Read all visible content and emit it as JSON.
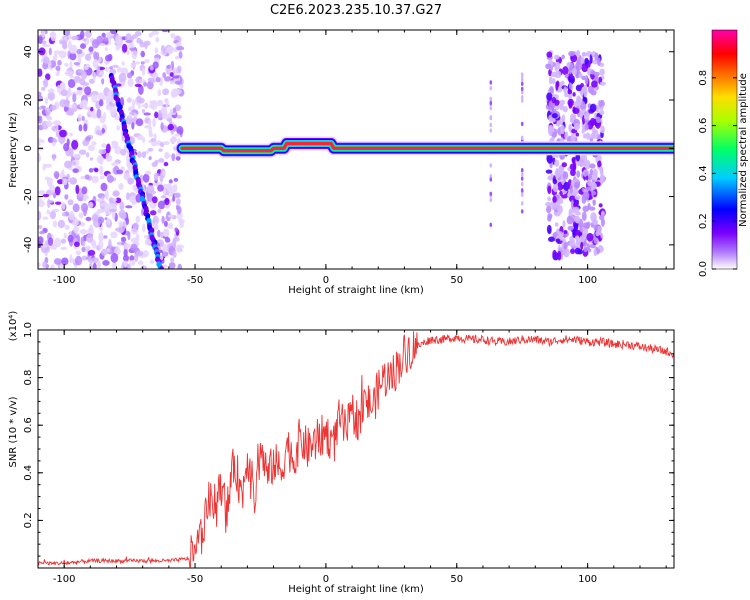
{
  "title": "C2E6.2023.235.10.37.G27",
  "charts": [
    {
      "type": "heatmap",
      "xlabel": "Height of straight line (km)",
      "ylabel": "Frequency (Hz)",
      "xlim": [
        -110,
        133
      ],
      "ylim": [
        -50,
        49
      ],
      "xticks": [
        -100,
        -50,
        0,
        50,
        100
      ],
      "yticks": [
        -40,
        -20,
        0,
        20,
        40
      ],
      "xtick_labels": [
        "-100",
        "-50",
        "0",
        "50",
        "100"
      ],
      "ytick_labels": [
        "-40",
        "-20",
        "0",
        "20",
        "40"
      ],
      "colorbar": {
        "label": "Normalized spectral amplitude",
        "range": [
          0,
          1
        ],
        "ticks": [
          0.0,
          0.2,
          0.4,
          0.6,
          0.8
        ],
        "tick_labels": [
          "0.0",
          "0.2",
          "0.4",
          "0.6",
          "0.8"
        ],
        "colors": [
          "#ffffff",
          "#7b00ff",
          "#0000ff",
          "#00ffff",
          "#00ff00",
          "#ffff00",
          "#ff0000",
          "#ff00ff"
        ]
      },
      "features": {
        "noise_region_km": [
          -110,
          -55
        ],
        "diagonal_track": {
          "from": [
            -82,
            30
          ],
          "to": [
            -63,
            -50
          ]
        },
        "main_trace_km": [
          -55,
          133
        ],
        "main_trace_freq_hz": 0,
        "trace_bump_km": [
          -15,
          2
        ],
        "trace_bump_freq_hz": 2,
        "thin_streaks_km": [
          63,
          75
        ],
        "noise_bands_km": [
          [
            85,
            92
          ],
          [
            93,
            99
          ],
          [
            99,
            106
          ]
        ]
      }
    },
    {
      "type": "line",
      "xlabel": "Height of straight line (km)",
      "ylabel": "SNR (10 * v/v)",
      "yscale_note": "(x10⁴)",
      "xlim": [
        -110,
        133
      ],
      "ylim": [
        0,
        1.0
      ],
      "xticks": [
        -100,
        -50,
        0,
        50,
        100
      ],
      "yticks": [
        0.2,
        0.4,
        0.6,
        0.8,
        1.0
      ],
      "xtick_labels": [
        "-100",
        "-50",
        "0",
        "50",
        "100"
      ],
      "ytick_labels": [
        "0.2",
        "0.4",
        "0.6",
        "0.8",
        "1.0"
      ],
      "series_color": "#ee3333",
      "x": [
        -110,
        -100,
        -90,
        -80,
        -70,
        -60,
        -52,
        -50,
        -48,
        -45,
        -42,
        -40,
        -38,
        -35,
        -32,
        -30,
        -27,
        -25,
        -22,
        -20,
        -17,
        -15,
        -12,
        -10,
        -7,
        -5,
        -2,
        0,
        3,
        5,
        8,
        10,
        13,
        15,
        18,
        20,
        22,
        25,
        28,
        30,
        32,
        35,
        38,
        40,
        45,
        50,
        55,
        60,
        65,
        70,
        75,
        80,
        85,
        90,
        95,
        100,
        105,
        110,
        115,
        120,
        125,
        130,
        133
      ],
      "y": [
        0.02,
        0.02,
        0.03,
        0.03,
        0.03,
        0.03,
        0.04,
        0.07,
        0.12,
        0.28,
        0.25,
        0.35,
        0.22,
        0.45,
        0.3,
        0.48,
        0.28,
        0.5,
        0.38,
        0.45,
        0.4,
        0.52,
        0.45,
        0.55,
        0.5,
        0.52,
        0.55,
        0.57,
        0.52,
        0.62,
        0.58,
        0.65,
        0.62,
        0.7,
        0.68,
        0.75,
        0.8,
        0.8,
        0.86,
        0.9,
        0.92,
        0.93,
        0.95,
        0.96,
        0.96,
        0.97,
        0.96,
        0.96,
        0.95,
        0.95,
        0.96,
        0.96,
        0.95,
        0.96,
        0.96,
        0.95,
        0.95,
        0.94,
        0.94,
        0.93,
        0.92,
        0.91,
        0.9
      ]
    }
  ]
}
